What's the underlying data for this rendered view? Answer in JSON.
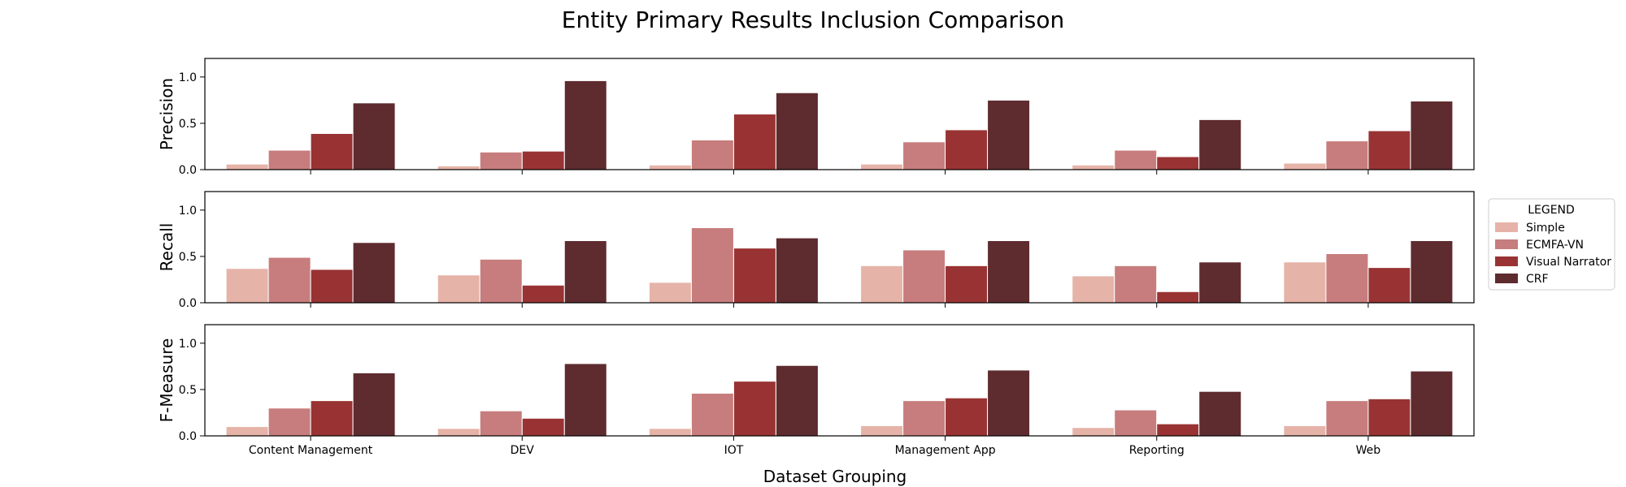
{
  "chart_data": {
    "type": "bar",
    "title": "Entity Primary Results Inclusion Comparison",
    "xlabel": "Dataset Grouping",
    "categories": [
      "Content Management",
      "DEV",
      "IOT",
      "Management App",
      "Reporting",
      "Web"
    ],
    "ylim": [
      0,
      1.2
    ],
    "yticks": [
      "0.0",
      "0.5",
      "1.0"
    ],
    "legend": {
      "title": "LEGEND",
      "placement": "center-right outside"
    },
    "series": [
      {
        "name": "Simple",
        "color": "#e6b3a8"
      },
      {
        "name": "ECMFA-VN",
        "color": "#c77d7d"
      },
      {
        "name": "Visual Narrator",
        "color": "#993333"
      },
      {
        "name": "CRF",
        "color": "#5e2b2e"
      }
    ],
    "panels": [
      {
        "ylabel": "Precision",
        "values": [
          [
            0.06,
            0.21,
            0.39,
            0.72
          ],
          [
            0.04,
            0.19,
            0.2,
            0.96
          ],
          [
            0.05,
            0.32,
            0.6,
            0.83
          ],
          [
            0.06,
            0.3,
            0.43,
            0.75
          ],
          [
            0.05,
            0.21,
            0.14,
            0.54
          ],
          [
            0.07,
            0.31,
            0.42,
            0.74
          ]
        ]
      },
      {
        "ylabel": "Recall",
        "values": [
          [
            0.37,
            0.49,
            0.36,
            0.65
          ],
          [
            0.3,
            0.47,
            0.19,
            0.67
          ],
          [
            0.22,
            0.81,
            0.59,
            0.7
          ],
          [
            0.4,
            0.57,
            0.4,
            0.67
          ],
          [
            0.29,
            0.4,
            0.12,
            0.44
          ],
          [
            0.44,
            0.53,
            0.38,
            0.67
          ]
        ]
      },
      {
        "ylabel": "F-Measure",
        "values": [
          [
            0.1,
            0.3,
            0.38,
            0.68
          ],
          [
            0.08,
            0.27,
            0.19,
            0.78
          ],
          [
            0.08,
            0.46,
            0.59,
            0.76
          ],
          [
            0.11,
            0.38,
            0.41,
            0.71
          ],
          [
            0.09,
            0.28,
            0.13,
            0.48
          ],
          [
            0.11,
            0.38,
            0.4,
            0.7
          ]
        ]
      }
    ]
  }
}
